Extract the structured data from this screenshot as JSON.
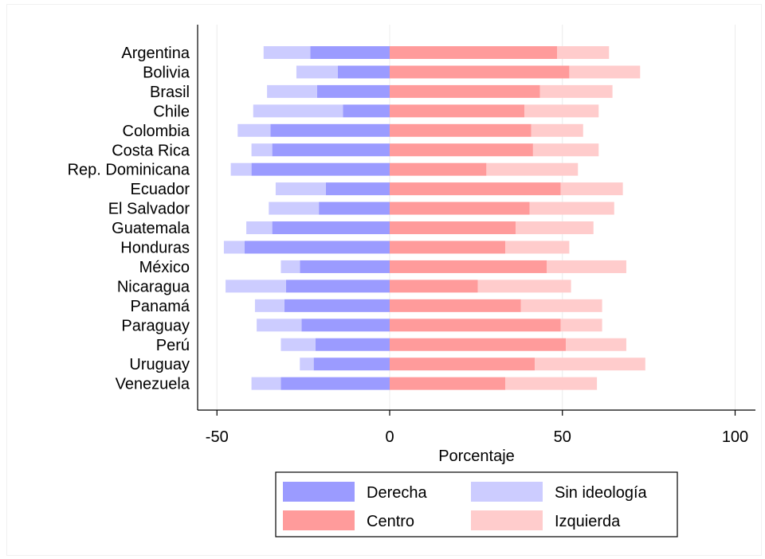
{
  "chart_data": {
    "type": "bar",
    "orientation": "horizontal",
    "stacked": "diverging",
    "xlabel": "Porcentaje",
    "ylabel": "",
    "xlim": [
      -55,
      106
    ],
    "xticks": [
      -50,
      0,
      50,
      100
    ],
    "xtick_labels": [
      "-50",
      "0",
      "50",
      "100"
    ],
    "grid": true,
    "legend_position": "bottom",
    "categories": [
      "Argentina",
      "Bolivia",
      "Brasil",
      "Chile",
      "Colombia",
      "Costa Rica",
      "Rep. Dominicana",
      "Ecuador",
      "El Salvador",
      "Guatemala",
      "Honduras",
      "México",
      "Nicaragua",
      "Panamá",
      "Paraguay",
      "Perú",
      "Uruguay",
      "Venezuela"
    ],
    "series": [
      {
        "name": "Derecha",
        "side": "negative",
        "color": "#9b9bff",
        "values": [
          23,
          15,
          21,
          13.5,
          34.5,
          34,
          40,
          18.5,
          20.5,
          34,
          42,
          26,
          30,
          30.5,
          25.5,
          21.5,
          22,
          31.5
        ]
      },
      {
        "name": "Sin ideología",
        "side": "negative",
        "color": "#ccccff",
        "values": [
          13.5,
          12,
          14.5,
          26,
          9.5,
          6,
          6,
          14.5,
          14.5,
          7.5,
          6,
          5.5,
          17.5,
          8.5,
          13,
          10,
          4,
          8.5
        ]
      },
      {
        "name": "Centro",
        "side": "positive",
        "color": "#ff9b9b",
        "values": [
          48.5,
          52,
          43.5,
          39,
          41,
          41.5,
          28,
          49.5,
          40.5,
          36.5,
          33.5,
          45.5,
          25.5,
          38,
          49.5,
          51,
          42,
          33.5
        ]
      },
      {
        "name": "Izquierda",
        "side": "positive",
        "color": "#ffcccc",
        "values": [
          15,
          20.5,
          21,
          21.5,
          15,
          19,
          26.5,
          18,
          24.5,
          22.5,
          18.5,
          23,
          27,
          23.5,
          12,
          17.5,
          32,
          26.5
        ]
      }
    ],
    "legend_order": [
      "Derecha",
      "Sin ideología",
      "Centro",
      "Izquierda"
    ]
  }
}
